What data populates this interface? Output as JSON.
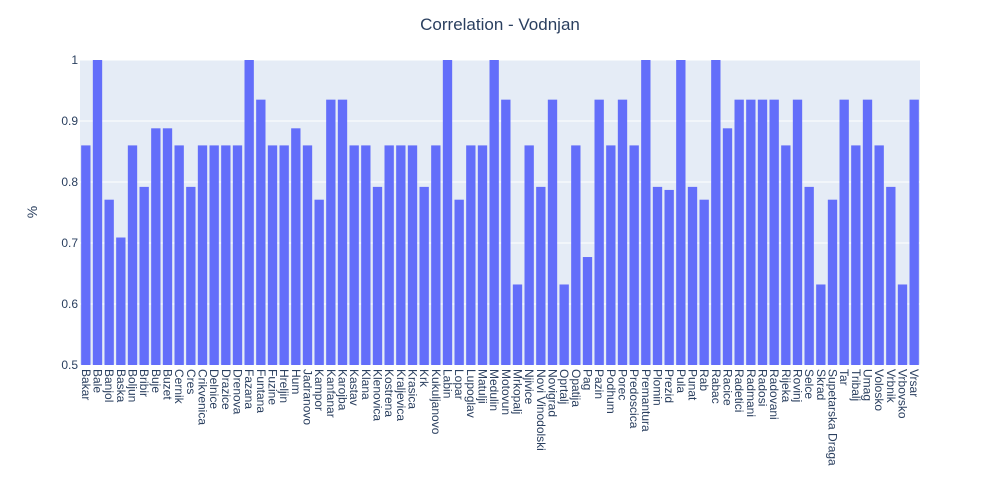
{
  "chart_data": {
    "type": "bar",
    "title": "Correlation - Vodnjan",
    "xlabel": "",
    "ylabel": "%",
    "ylim": [
      0.5,
      1.0
    ],
    "yticks": [
      0.5,
      0.6,
      0.7,
      0.8,
      0.9,
      1
    ],
    "ytick_labels": [
      "0.5",
      "0.6",
      "0.7",
      "0.8",
      "0.9",
      "1"
    ],
    "grid": true,
    "bar_color": "#636efa",
    "plot_bg": "#e5ecf6",
    "categories": [
      "Bakar",
      "Bale",
      "Banjol",
      "Baska",
      "Boljun",
      "Bribir",
      "Buje",
      "Buzet",
      "Cernik",
      "Cres",
      "Crikvenica",
      "Delnice",
      "Drazice",
      "Drenova",
      "Fazana",
      "Funtana",
      "Fuzine",
      "Hreljin",
      "Hum",
      "Jadranovo",
      "Kampor",
      "Kanfanar",
      "Karojba",
      "Kastav",
      "Klana",
      "Klenovica",
      "Kostrena",
      "Kraljevica",
      "Krasica",
      "Krk",
      "Kukuljanovo",
      "Labin",
      "Lopar",
      "Lupoglav",
      "Matulji",
      "Medulin",
      "Motovun",
      "Mrkopalj",
      "Njivice",
      "Novi Vinodolski",
      "Novigrad",
      "Oprtalj",
      "Opatija",
      "Pag",
      "Pazin",
      "Podhum",
      "Porec",
      "Predoscica",
      "Premantura",
      "Plomin",
      "Prezid",
      "Pula",
      "Punat",
      "Rab",
      "Rabac",
      "Racice",
      "Radetici",
      "Radmani",
      "Radosi",
      "Radovani",
      "Rijeka",
      "Rovinj",
      "Selce",
      "Skrad",
      "Supetarska Draga",
      "Tar",
      "Tribalj",
      "Umag",
      "Volosko",
      "Vrbnik",
      "Vrbovsko",
      "Vrsar"
    ],
    "values": [
      0.86,
      1.0,
      0.771,
      0.709,
      0.86,
      0.792,
      0.888,
      0.888,
      0.86,
      0.792,
      0.86,
      0.86,
      0.86,
      0.86,
      1.0,
      0.935,
      0.86,
      0.86,
      0.888,
      0.86,
      0.771,
      0.935,
      0.935,
      0.86,
      0.86,
      0.792,
      0.86,
      0.86,
      0.86,
      0.792,
      0.86,
      1.0,
      0.771,
      0.86,
      0.86,
      1.0,
      0.935,
      0.632,
      0.86,
      0.792,
      0.935,
      0.632,
      0.86,
      0.677,
      0.935,
      0.86,
      0.935,
      0.86,
      1.0,
      0.792,
      0.787,
      1.0,
      0.792,
      0.771,
      1.0,
      0.888,
      0.935,
      0.935,
      0.935,
      0.935,
      0.86,
      0.935,
      0.792,
      0.632,
      0.771,
      0.935,
      0.86,
      0.935,
      0.86,
      0.792,
      0.632,
      0.935
    ]
  }
}
